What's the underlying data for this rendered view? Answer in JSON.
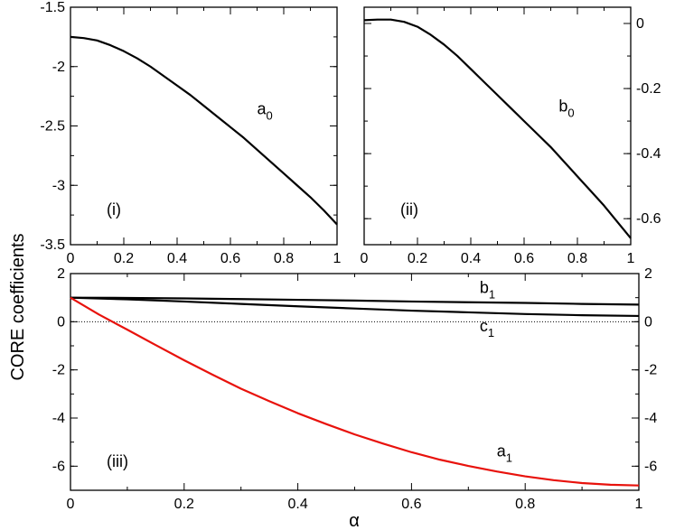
{
  "figure": {
    "ylabel": "CORE coefficients",
    "xlabel": "α"
  },
  "chart_data": [
    {
      "panel": "(i)",
      "type": "line",
      "xlim": [
        0,
        1
      ],
      "ylim": [
        -3.5,
        -1.5
      ],
      "xticks": [
        "0",
        "0.2",
        "0.4",
        "0.6",
        "0.8",
        "1"
      ],
      "yticks": [
        "-1.5",
        "-2",
        "-2.5",
        "-3",
        "-3.5"
      ],
      "ytick_values": [
        -1.5,
        -2,
        -2.5,
        -3,
        -3.5
      ],
      "y_axis_side": "left",
      "series": [
        {
          "name": "a0",
          "label_main": "a",
          "label_sub": "0",
          "color": "#000000",
          "label_at": [
            0.7,
            -2.4
          ],
          "x": [
            0,
            0.05,
            0.1,
            0.15,
            0.2,
            0.25,
            0.3,
            0.35,
            0.4,
            0.45,
            0.5,
            0.55,
            0.6,
            0.65,
            0.7,
            0.75,
            0.8,
            0.85,
            0.9,
            0.95,
            1
          ],
          "y": [
            -1.75,
            -1.76,
            -1.78,
            -1.82,
            -1.87,
            -1.93,
            -2.0,
            -2.08,
            -2.16,
            -2.24,
            -2.33,
            -2.42,
            -2.51,
            -2.6,
            -2.7,
            -2.8,
            -2.9,
            -3.0,
            -3.1,
            -3.21,
            -3.33
          ]
        }
      ]
    },
    {
      "panel": "(ii)",
      "type": "line",
      "xlim": [
        0,
        1
      ],
      "ylim": [
        -0.68,
        0.05
      ],
      "xticks": [
        "0",
        "0.2",
        "0.4",
        "0.6",
        "0.8",
        "1"
      ],
      "yticks": [
        "0",
        "-0.2",
        "-0.4",
        "-0.6"
      ],
      "ytick_values": [
        0,
        -0.2,
        -0.4,
        -0.6
      ],
      "y_axis_side": "right",
      "series": [
        {
          "name": "b0",
          "label_main": "b",
          "label_sub": "0",
          "color": "#000000",
          "label_at": [
            0.73,
            -0.27
          ],
          "x": [
            0,
            0.05,
            0.1,
            0.15,
            0.2,
            0.25,
            0.3,
            0.35,
            0.4,
            0.45,
            0.5,
            0.55,
            0.6,
            0.65,
            0.7,
            0.75,
            0.8,
            0.85,
            0.9,
            0.95,
            1
          ],
          "y": [
            0.01,
            0.012,
            0.012,
            0.005,
            -0.01,
            -0.035,
            -0.065,
            -0.1,
            -0.14,
            -0.18,
            -0.22,
            -0.26,
            -0.3,
            -0.34,
            -0.38,
            -0.425,
            -0.47,
            -0.515,
            -0.56,
            -0.61,
            -0.66
          ]
        }
      ]
    },
    {
      "panel": "(iii)",
      "type": "line",
      "xlim": [
        0,
        1
      ],
      "ylim": [
        -7,
        2
      ],
      "xticks": [
        "0",
        "0.2",
        "0.4",
        "0.6",
        "0.8",
        "1"
      ],
      "yticks": [
        "2",
        "0",
        "-2",
        "-4",
        "-6"
      ],
      "ytick_values": [
        2,
        0,
        -2,
        -4,
        -6
      ],
      "y_axis_side": "both",
      "zero_line": true,
      "series": [
        {
          "name": "b1",
          "label_main": "b",
          "label_sub": "1",
          "color": "#000000",
          "label_at": [
            0.72,
            1.2
          ],
          "x": [
            0,
            0.1,
            0.2,
            0.3,
            0.4,
            0.5,
            0.6,
            0.7,
            0.8,
            0.9,
            1
          ],
          "y": [
            1.0,
            0.99,
            0.97,
            0.94,
            0.91,
            0.88,
            0.84,
            0.81,
            0.78,
            0.74,
            0.71
          ]
        },
        {
          "name": "c1",
          "label_main": "c",
          "label_sub": "1",
          "color": "#000000",
          "label_at": [
            0.72,
            -0.4
          ],
          "x": [
            0,
            0.1,
            0.2,
            0.3,
            0.4,
            0.5,
            0.6,
            0.7,
            0.8,
            0.9,
            1
          ],
          "y": [
            1.0,
            0.93,
            0.84,
            0.74,
            0.64,
            0.55,
            0.46,
            0.39,
            0.32,
            0.27,
            0.24
          ]
        },
        {
          "name": "a1",
          "label_main": "a",
          "label_sub": "1",
          "color": "#e8120c",
          "label_at": [
            0.75,
            -5.6
          ],
          "x": [
            0,
            0.05,
            0.1,
            0.15,
            0.2,
            0.25,
            0.3,
            0.35,
            0.4,
            0.45,
            0.5,
            0.55,
            0.6,
            0.65,
            0.7,
            0.75,
            0.8,
            0.85,
            0.9,
            0.95,
            1
          ],
          "y": [
            1.0,
            0.3,
            -0.33,
            -0.97,
            -1.6,
            -2.2,
            -2.78,
            -3.3,
            -3.8,
            -4.25,
            -4.68,
            -5.06,
            -5.42,
            -5.73,
            -5.99,
            -6.22,
            -6.42,
            -6.58,
            -6.7,
            -6.77,
            -6.8
          ]
        }
      ]
    }
  ]
}
